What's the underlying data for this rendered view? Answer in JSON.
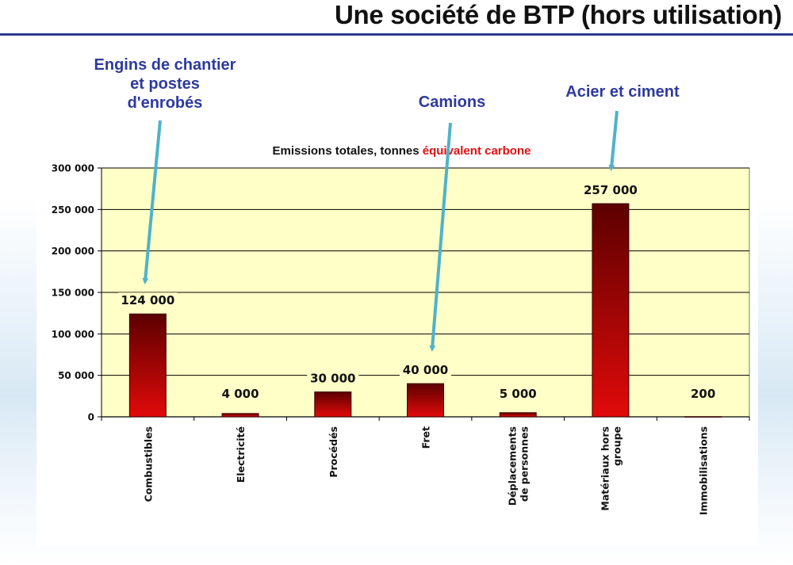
{
  "slide": {
    "title": "Une société de BTP (hors utilisation)"
  },
  "callouts": [
    {
      "lines": [
        "Engins de chantier",
        "et postes",
        "d'enrobés"
      ]
    },
    {
      "lines": [
        "Camions"
      ]
    },
    {
      "lines": [
        "Acier et ciment"
      ]
    }
  ],
  "chart_data": {
    "type": "bar",
    "title_parts": [
      "Emissions totales, tonnes ",
      "équivalent carbone"
    ],
    "categories": [
      [
        "Combustibles"
      ],
      [
        "Electricité"
      ],
      [
        "Procédés"
      ],
      [
        "Fret"
      ],
      [
        "Déplacements",
        "de personnes"
      ],
      [
        "Matériaux hors",
        "groupe"
      ],
      [
        "Immobilisations"
      ]
    ],
    "values": [
      124000,
      4000,
      30000,
      40000,
      5000,
      257000,
      200
    ],
    "data_labels": [
      "124 000",
      "4 000",
      "30 000",
      "40 000",
      "5 000",
      "257 000",
      "200"
    ],
    "ylim": [
      0,
      300000
    ],
    "yticks": [
      0,
      50000,
      100000,
      150000,
      200000,
      250000,
      300000
    ],
    "ytick_labels": [
      "0",
      "50 000",
      "100 000",
      "150 000",
      "200 000",
      "250 000",
      "300 000"
    ],
    "grid": true,
    "colors": {
      "plot_bg": "#ffffc8",
      "bar_top": "#5c0000",
      "bar_bottom": "#e10a0a",
      "title_accent": "#e01010",
      "arrow": "#4eb3c9"
    }
  }
}
